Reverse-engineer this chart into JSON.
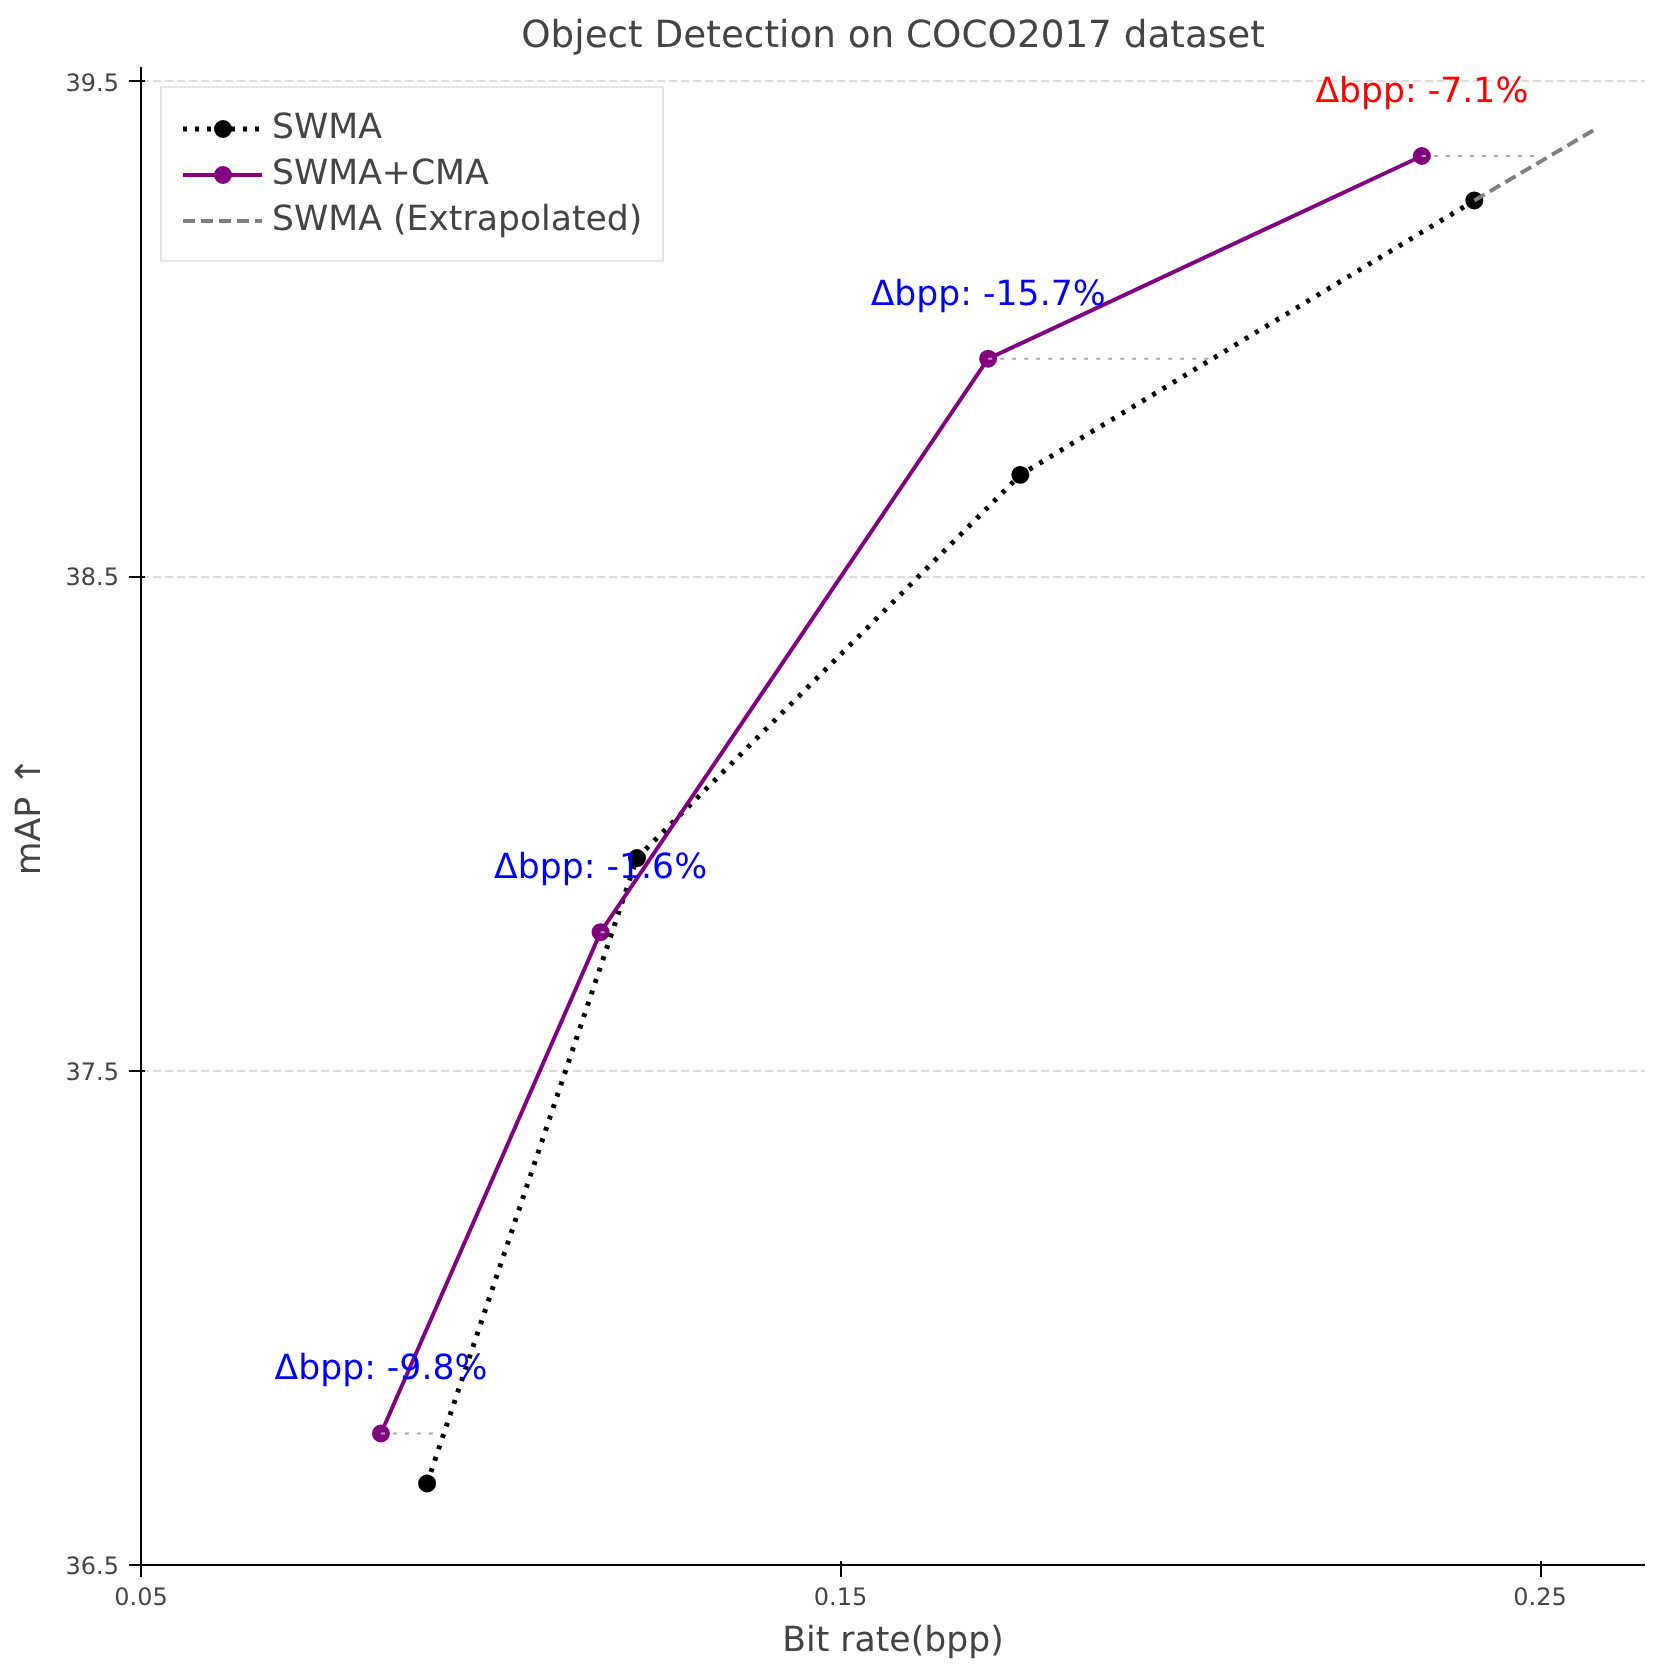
{
  "chart_data": {
    "type": "line",
    "title": "Object Detection on COCO2017 dataset",
    "xlabel": "Bit rate(bpp)",
    "ylabel": "mAP ↑",
    "series": [
      {
        "name": "SWMA",
        "color": "#000000",
        "line_style": "dotted",
        "marker": "circle",
        "x": [
          0.0909,
          0.1209,
          0.1757,
          0.2406
        ],
        "values": [
          36.665,
          37.93,
          38.705,
          39.26
        ]
      },
      {
        "name": "SWMA+CMA",
        "color": "#800080",
        "line_style": "solid",
        "marker": "circle",
        "x": [
          0.0843,
          0.1157,
          0.1711,
          0.2331
        ],
        "values": [
          36.766,
          37.78,
          38.94,
          39.35
        ]
      },
      {
        "name": "SWMA (Extrapolated)",
        "color": "#808080",
        "line_style": "dashed",
        "marker": "none",
        "x": [
          0.2406,
          0.258
        ],
        "values": [
          39.26,
          39.405
        ]
      },
      {
        "color": "#aaaaaa",
        "line_style": "dotted",
        "marker": "none",
        "x": [
          0.0843,
          0.0929,
          null,
          0.1157,
          0.1175,
          null,
          0.1711,
          0.2029,
          null,
          0.2331,
          0.2503
        ],
        "values": [
          36.766,
          36.766,
          null,
          37.78,
          37.78,
          null,
          38.94,
          38.94,
          null,
          39.35,
          39.35
        ]
      }
    ],
    "annotations": [
      {
        "text": "Δbpp: -9.8%",
        "x": 0.0843,
        "y": 36.766
      },
      {
        "text": "Δbpp: -1.6%",
        "x": 0.1157,
        "y": 37.78
      },
      {
        "text": "Δbpp: -15.7%",
        "x": 0.1711,
        "y": 38.94
      },
      {
        "text": "Δbpp: -7.1%",
        "x": 0.2331,
        "y": 39.35
      }
    ],
    "xlim": [
      0.05,
      0.265
    ],
    "ylim": [
      36.5,
      39.53
    ],
    "xticks": [
      0.05,
      0.15,
      0.25
    ],
    "yticks": [
      36.5,
      37.5,
      38.5,
      39.5
    ],
    "grid": "y",
    "legend": "top left"
  }
}
